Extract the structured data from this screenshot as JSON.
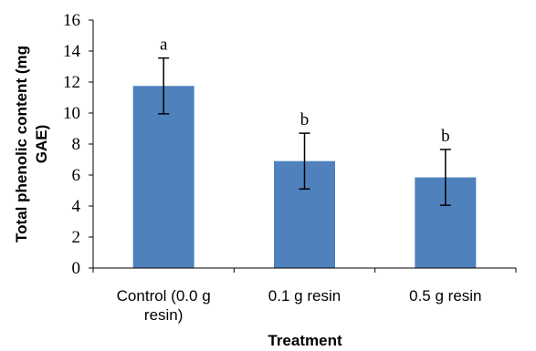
{
  "chart_data": {
    "type": "bar",
    "categories": [
      [
        "Control (0.0 g",
        "resin)"
      ],
      [
        "0.1 g resin"
      ],
      [
        "0.5 g resin"
      ]
    ],
    "values": [
      11.75,
      6.9,
      5.85
    ],
    "errors": [
      1.8,
      1.8,
      1.8
    ],
    "data_labels": [
      "a",
      "b",
      "b"
    ],
    "xlabel": "Treatment",
    "ylabel": [
      "Total phenolic content (mg",
      "GAE)"
    ],
    "ylim": [
      0,
      16
    ],
    "yticks": [
      0,
      2,
      4,
      6,
      8,
      10,
      12,
      14,
      16
    ],
    "grid": false,
    "legend": "none",
    "bar_color": "#4f81bd"
  }
}
